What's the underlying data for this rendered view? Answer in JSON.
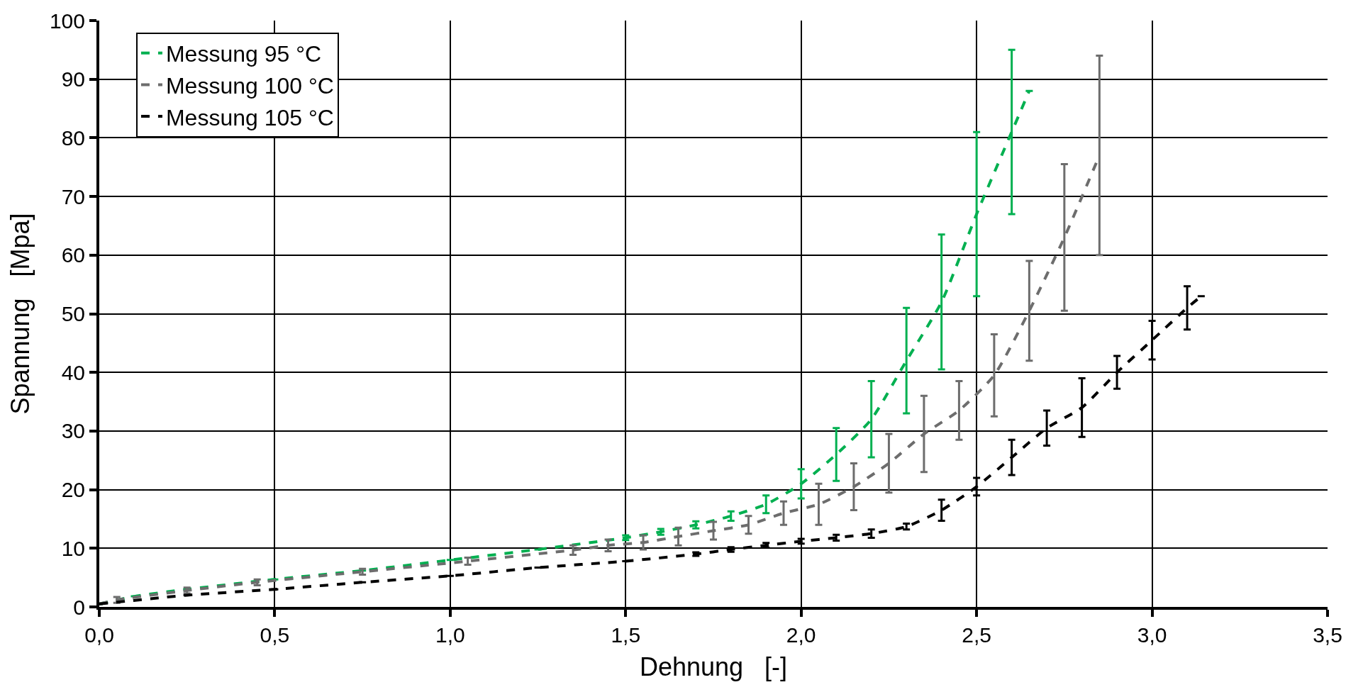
{
  "chart_data": {
    "type": "line",
    "xlabel": "Dehnung   [-]",
    "ylabel": "Spannung   [Mpa]",
    "xlim": [
      0,
      3.5
    ],
    "xticks": [
      {
        "value": 0,
        "label": "0,0"
      },
      {
        "value": 0.5,
        "label": "0,5"
      },
      {
        "value": 1,
        "label": "1,0"
      },
      {
        "value": 1.5,
        "label": "1,5"
      },
      {
        "value": 2,
        "label": "2,0"
      },
      {
        "value": 2.5,
        "label": "2,5"
      },
      {
        "value": 3,
        "label": "3,0"
      },
      {
        "value": 3.5,
        "label": "3,5"
      }
    ],
    "ylim": [
      0,
      100
    ],
    "yticks": [
      0,
      10,
      20,
      30,
      40,
      50,
      60,
      70,
      80,
      90,
      100
    ],
    "grid": true,
    "legend": "top left",
    "marker": "none",
    "line_style": "dashed",
    "series": [
      {
        "name": "Messung 95 °C",
        "color": "#00b050",
        "x": [
          0,
          0.1,
          0.25,
          0.5,
          0.75,
          1.0,
          1.25,
          1.5,
          1.6,
          1.7,
          1.8,
          1.9,
          2.0,
          2.1,
          2.2,
          2.3,
          2.4,
          2.5,
          2.6,
          2.65
        ],
        "values": [
          0.5,
          1.8,
          3,
          4.7,
          6.2,
          8,
          9.8,
          11.8,
          12.8,
          14,
          15.5,
          17.5,
          21,
          26,
          32,
          42,
          52,
          67,
          81,
          88
        ],
        "errors": [
          null,
          null,
          null,
          null,
          null,
          null,
          null,
          0.4,
          0.5,
          0.6,
          0.8,
          1.5,
          2.5,
          4.5,
          6.5,
          9,
          11.5,
          14,
          14,
          null
        ]
      },
      {
        "name": "Messung 100 °C",
        "color": "#6d6d6d",
        "x": [
          0,
          0.05,
          0.25,
          0.45,
          0.75,
          1.05,
          1.35,
          1.45,
          1.55,
          1.65,
          1.75,
          1.85,
          1.95,
          2.05,
          2.15,
          2.25,
          2.35,
          2.45,
          2.55,
          2.65,
          2.75,
          2.85
        ],
        "values": [
          0.5,
          1.2,
          2.8,
          4.2,
          6,
          7.8,
          9.7,
          10.5,
          11,
          12,
          13,
          14,
          16,
          17.5,
          20.5,
          24.5,
          29.5,
          33.5,
          39.5,
          50.5,
          63,
          77
        ],
        "errors": [
          null,
          0.5,
          0.5,
          0.5,
          0.5,
          0.6,
          0.8,
          1,
          1.2,
          1.5,
          1.5,
          1.5,
          2,
          3.5,
          4,
          5,
          6.5,
          5,
          7,
          8.5,
          12.5,
          17
        ]
      },
      {
        "name": "Messung 105 °C",
        "color": "#000000",
        "x": [
          0,
          0.25,
          0.5,
          0.75,
          1.0,
          1.25,
          1.5,
          1.7,
          1.8,
          1.9,
          2.0,
          2.1,
          2.2,
          2.3,
          2.4,
          2.5,
          2.6,
          2.7,
          2.8,
          2.9,
          3.0,
          3.1,
          3.14
        ],
        "values": [
          0.5,
          2,
          3,
          4.2,
          5.3,
          6.7,
          7.8,
          9,
          9.8,
          10.5,
          11.2,
          11.8,
          12.5,
          13.7,
          16.5,
          20.5,
          25.5,
          30.5,
          34,
          40,
          45.5,
          51,
          53
        ],
        "errors": [
          null,
          null,
          null,
          null,
          null,
          null,
          null,
          0.3,
          0.4,
          0.4,
          0.4,
          0.5,
          0.7,
          0.5,
          1.8,
          1.5,
          3,
          3,
          5,
          2.8,
          3.3,
          3.7,
          null
        ]
      }
    ]
  }
}
